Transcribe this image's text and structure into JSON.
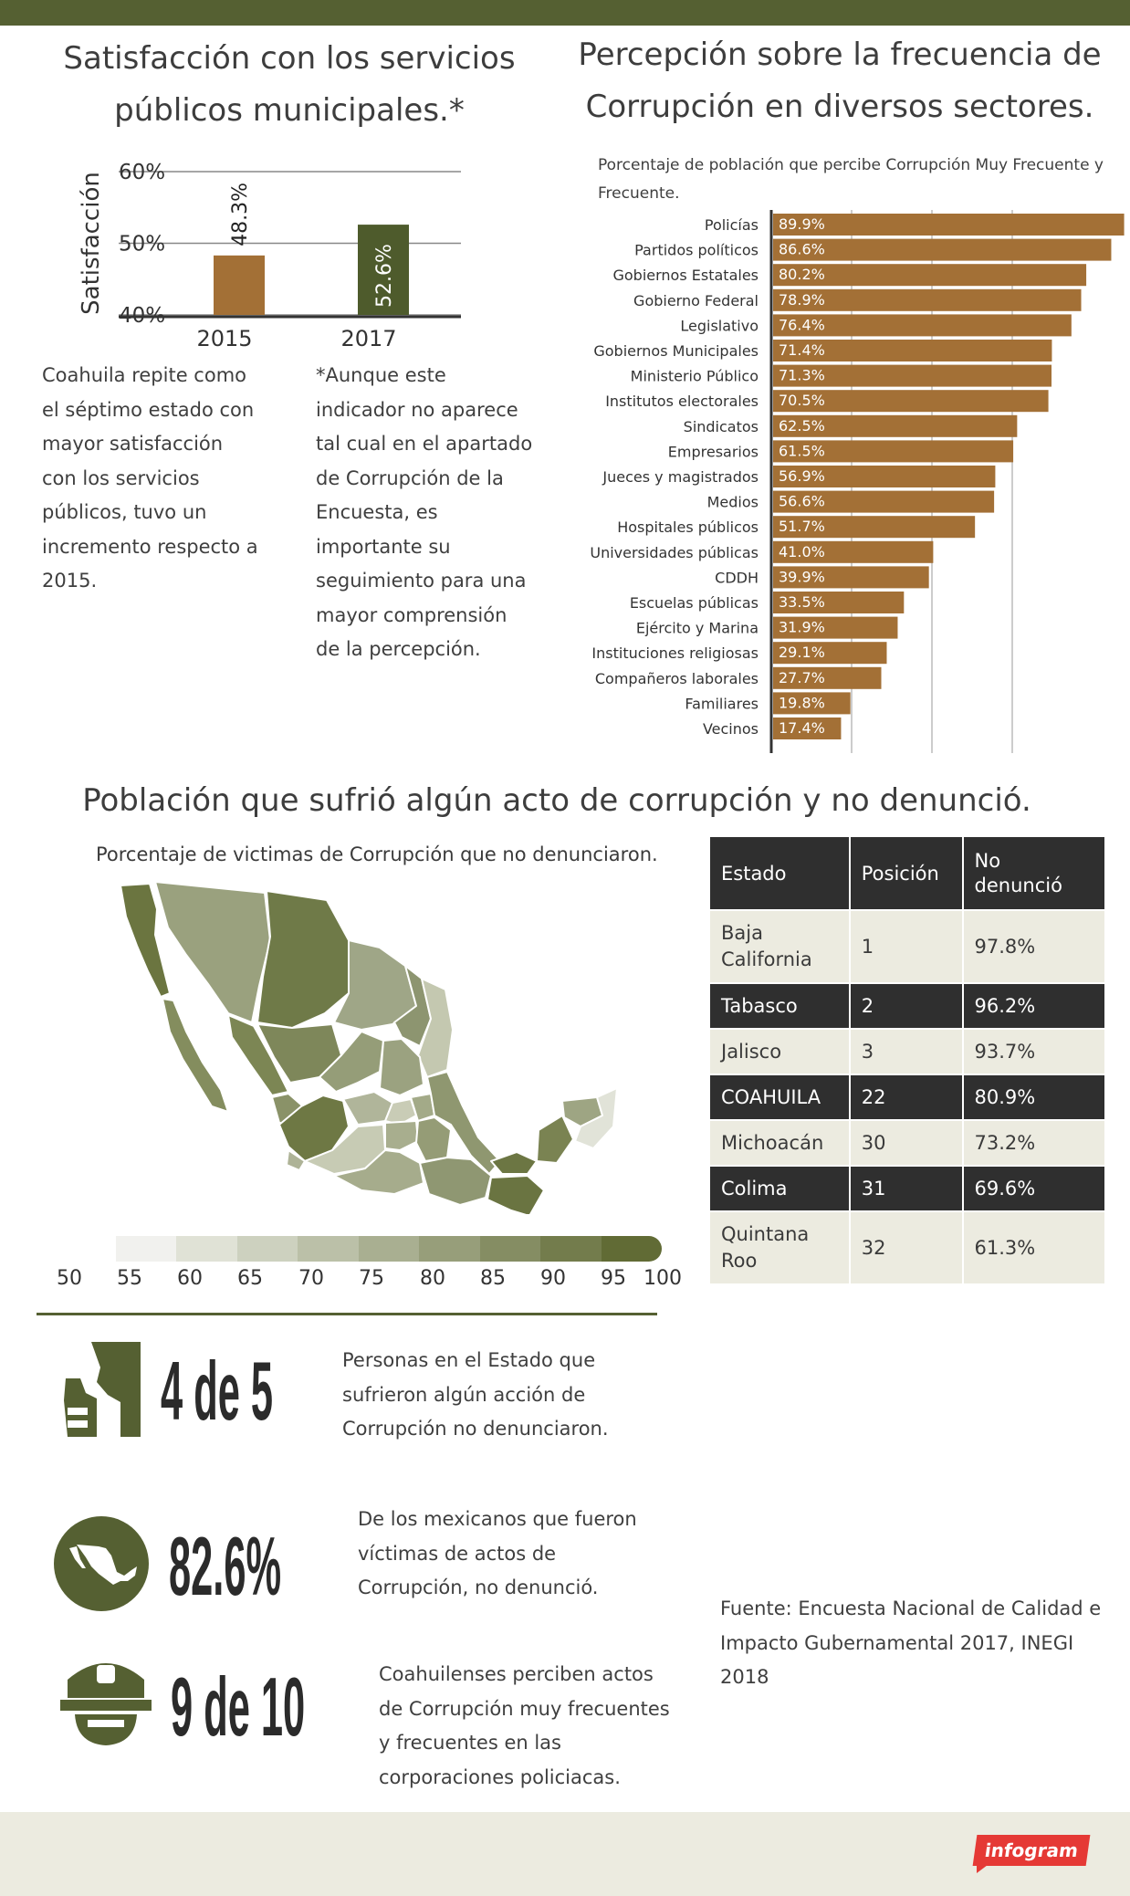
{
  "colors": {
    "accent": "#556032",
    "bar_orange": "#a37036",
    "bar_green": "#4e5b2c",
    "dark": "#2f2f2f",
    "light": "#ecebe0"
  },
  "satisfaction": {
    "title": "Satisfacción con los servicios públicos municipales.*",
    "description": "Coahuila repite como el séptimo estado con mayor satisfacción con los servicios públicos, tuvo un incremento respecto a 2015.",
    "note": "*Aunque este indicador no aparece tal cual en el apartado de Corrupción de la Encuesta, es importante su seguimiento para una mayor comprensión de la percepción."
  },
  "corruption": {
    "title": "Percepción sobre la frecuencia de Corrupción en diversos sectores.",
    "subtitle": "Porcentaje de población que percibe Corrupción Muy Frecuente y Frecuente."
  },
  "population": {
    "title": "Población que sufrió algún acto de corrupción y no denunció.",
    "subtitle": "Porcentaje de victimas de Corrupción que no denunciaron.",
    "legend_labels": [
      "50",
      "55",
      "60",
      "65",
      "70",
      "75",
      "80",
      "85",
      "90",
      "95",
      "100"
    ],
    "legend_colors": [
      "#f1f1ee",
      "#e0e2d6",
      "#cdd1bf",
      "#bbc0a8",
      "#a9af91",
      "#979e7a",
      "#858d63",
      "#737c4c",
      "#616b35"
    ]
  },
  "table": {
    "headers": [
      "Estado",
      "Posición",
      "No denunció"
    ],
    "rows": [
      {
        "estado": "Baja California",
        "posicion": "1",
        "valor": "97.8%"
      },
      {
        "estado": "Tabasco",
        "posicion": "2",
        "valor": "96.2%"
      },
      {
        "estado": "Jalisco",
        "posicion": "3",
        "valor": "93.7%"
      },
      {
        "estado": "COAHUILA",
        "posicion": "22",
        "valor": "80.9%"
      },
      {
        "estado": "Michoacán",
        "posicion": "30",
        "valor": "73.2%"
      },
      {
        "estado": "Colima",
        "posicion": "31",
        "valor": "69.6%"
      },
      {
        "estado": "Quintana Roo",
        "posicion": "32",
        "valor": "61.3%"
      }
    ]
  },
  "stats": [
    {
      "value": "4 de 5",
      "icon": "silence-hand-icon",
      "text": "Personas en el Estado que sufrieron algún acción de Corrupción no denunciaron."
    },
    {
      "value": "82.6%",
      "icon": "mexico-map-icon",
      "text": "De los mexicanos que fueron víctimas de actos de Corrupción, no denunció."
    },
    {
      "value": "9 de 10",
      "icon": "police-officer-icon",
      "text": "Coahuilenses perciben actos de Corrupción muy frecuentes y frecuentes en las corporaciones policiacas."
    }
  ],
  "source": "Fuente: Encuesta Nacional de Calidad e Impacto Gubernamental 2017, INEGI 2018",
  "brand": "infogram",
  "chart_data": [
    {
      "type": "bar",
      "ylabel": "Satisfacción",
      "ylim": [
        40,
        60
      ],
      "yticks": [
        "40%",
        "50%",
        "60%"
      ],
      "categories": [
        "2015",
        "2017"
      ],
      "values": [
        48.3,
        52.6
      ],
      "labels": [
        "48.3%",
        "52.6%"
      ]
    },
    {
      "type": "bar",
      "orientation": "horizontal",
      "categories": [
        "Policías",
        "Partidos políticos",
        "Gobiernos Estatales",
        "Gobierno Federal",
        "Legislativo",
        "Gobiernos Municipales",
        "Ministerio Público",
        "Institutos electorales",
        "Sindicatos",
        "Empresarios",
        "Jueces y magistrados",
        "Medios",
        "Hospitales públicos",
        "Universidades públicas",
        "CDDH",
        "Escuelas públicas",
        "Ejército y Marina",
        "Instituciones religiosas",
        "Compañeros laborales",
        "Familiares",
        "Vecinos"
      ],
      "values": [
        89.9,
        86.6,
        80.2,
        78.9,
        76.4,
        71.4,
        71.3,
        70.5,
        62.5,
        61.5,
        56.9,
        56.6,
        51.7,
        41.0,
        39.9,
        33.5,
        31.9,
        29.1,
        27.7,
        19.8,
        17.4
      ],
      "labels": [
        "89.9%",
        "86.6%",
        "80.2%",
        "78.9%",
        "76.4%",
        "71.4%",
        "71.3%",
        "70.5%",
        "62.5%",
        "61.5%",
        "56.9%",
        "56.6%",
        "51.7%",
        "41.0%",
        "39.9%",
        "33.5%",
        "31.9%",
        "29.1%",
        "27.7%",
        "19.8%",
        "17.4%"
      ],
      "xlim": [
        0,
        90
      ]
    }
  ]
}
